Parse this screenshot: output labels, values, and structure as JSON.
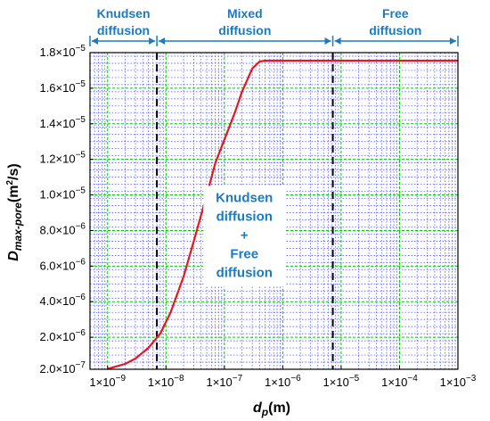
{
  "chart_data": {
    "type": "line",
    "xscale": "log",
    "xlim": [
      5e-10,
      0.001
    ],
    "ylim": [
      2e-07,
      1.8e-05
    ],
    "grid": true,
    "xlabel": {
      "main": "d",
      "sub": "p",
      "unit": "(m)"
    },
    "ylabel": {
      "main": "D",
      "sub": "max-pore",
      "unit_pre": "(m",
      "unit_sup": "2",
      "unit_post": "/s)"
    },
    "xticks": [
      {
        "value": 1e-09,
        "mant": "1×10",
        "exp": "−9"
      },
      {
        "value": 1e-08,
        "mant": "1×10",
        "exp": "−8"
      },
      {
        "value": 1e-07,
        "mant": "1×10",
        "exp": "−7"
      },
      {
        "value": 1e-06,
        "mant": "1×10",
        "exp": "−6"
      },
      {
        "value": 1e-05,
        "mant": "1×10",
        "exp": "−5"
      },
      {
        "value": 0.0001,
        "mant": "1×10",
        "exp": "−4"
      },
      {
        "value": 0.001,
        "mant": "1×10",
        "exp": "−3"
      }
    ],
    "yticks": [
      {
        "value": 2e-07,
        "mant": "2.0×10",
        "exp": "−7"
      },
      {
        "value": 2e-06,
        "mant": "2.0×10",
        "exp": "−6"
      },
      {
        "value": 4e-06,
        "mant": "4.0×10",
        "exp": "−6"
      },
      {
        "value": 6e-06,
        "mant": "6.0×10",
        "exp": "−6"
      },
      {
        "value": 8e-06,
        "mant": "8.0×10",
        "exp": "−6"
      },
      {
        "value": 1e-05,
        "mant": "1.0×10",
        "exp": "−5"
      },
      {
        "value": 1.2e-05,
        "mant": "1.2×10",
        "exp": "−5"
      },
      {
        "value": 1.4e-05,
        "mant": "1.4×10",
        "exp": "−5"
      },
      {
        "value": 1.6e-05,
        "mant": "1.6×10",
        "exp": "−5"
      },
      {
        "value": 1.8e-05,
        "mant": "1.8×10",
        "exp": "−5"
      }
    ],
    "series": [
      {
        "color": "#e31a1c",
        "points": [
          [
            1e-09,
            2.2e-07
          ],
          [
            2e-09,
            5e-07
          ],
          [
            3e-09,
            8e-07
          ],
          [
            5e-09,
            1.4e-06
          ],
          [
            8e-09,
            2.2e-06
          ],
          [
            1.2e-08,
            3.4e-06
          ],
          [
            2e-08,
            5.4e-06
          ],
          [
            3e-08,
            7.4e-06
          ],
          [
            5e-08,
            1e-05
          ],
          [
            7e-08,
            1.18e-05
          ],
          [
            1e-07,
            1.31e-05
          ],
          [
            1.5e-07,
            1.46e-05
          ],
          [
            2e-07,
            1.58e-05
          ],
          [
            3e-07,
            1.71e-05
          ],
          [
            4e-07,
            1.75e-05
          ],
          [
            5e-07,
            1.755e-05
          ],
          [
            1e-06,
            1.755e-05
          ],
          [
            1e-05,
            1.755e-05
          ],
          [
            0.0001,
            1.755e-05
          ],
          [
            0.001,
            1.755e-05
          ]
        ]
      }
    ],
    "boundaries": [
      7e-09,
      7.2e-06
    ],
    "regions": [
      {
        "lines": [
          "Knudsen",
          "diffusion"
        ],
        "from": 5e-10,
        "to": 7e-09
      },
      {
        "lines": [
          "Mixed",
          "diffusion"
        ],
        "from": 7e-09,
        "to": 7.2e-06
      },
      {
        "lines": [
          "Free",
          "diffusion"
        ],
        "from": 7.2e-06,
        "to": 0.001
      }
    ],
    "annotation": {
      "lines": [
        "Knudsen",
        "diffusion",
        "+",
        "Free",
        "diffusion"
      ],
      "x": 2.2e-07,
      "y": 7.5e-06
    },
    "colors": {
      "curve": "#e31a1c",
      "major_grid": "#00cc00",
      "minor_grid": "#4444ff",
      "region_text": "#1a7bc4",
      "boundary": "#000000"
    }
  }
}
